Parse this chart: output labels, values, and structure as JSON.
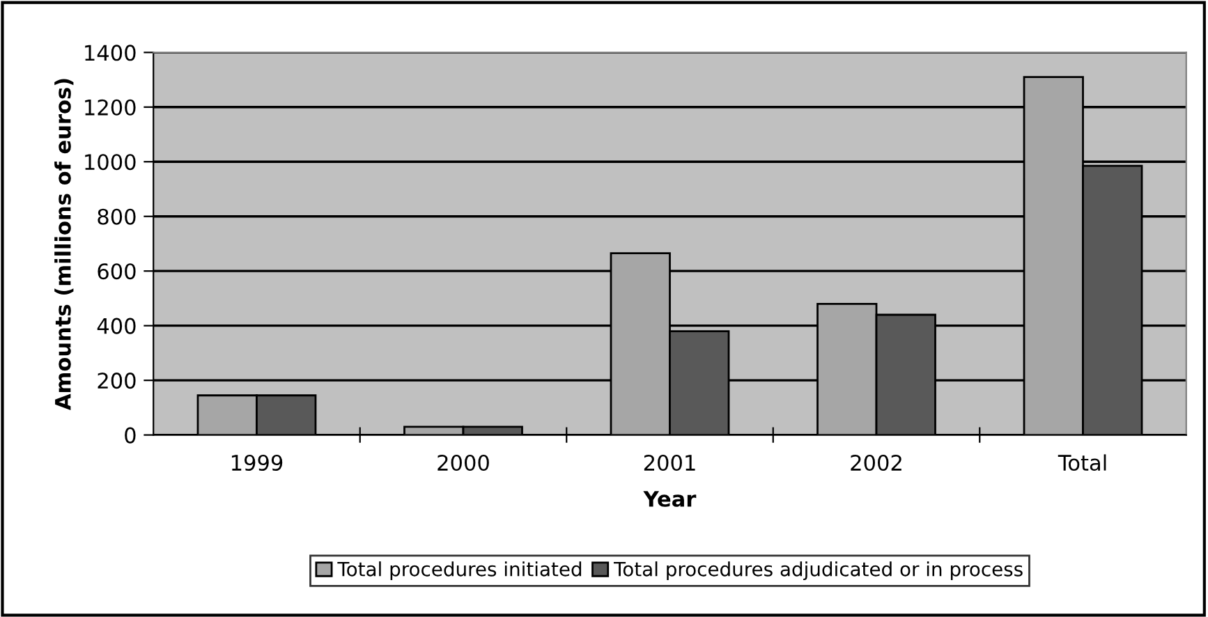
{
  "chart_data": {
    "type": "bar",
    "xlabel": "Year",
    "ylabel": "Amounts (millions of euros)",
    "categories": [
      "1999",
      "2000",
      "2001",
      "2002",
      "Total"
    ],
    "series": [
      {
        "name": "Total procedures initiated",
        "color": "#a6a6a6",
        "values": [
          145,
          30,
          665,
          480,
          1310
        ]
      },
      {
        "name": "Total procedures adjudicated or in process",
        "color": "#595959",
        "values": [
          145,
          30,
          380,
          440,
          985
        ]
      }
    ],
    "ylim": [
      0,
      1400
    ],
    "yticks": [
      0,
      200,
      400,
      600,
      800,
      1000,
      1200,
      1400
    ],
    "grid": "y",
    "legend": "bottom"
  }
}
